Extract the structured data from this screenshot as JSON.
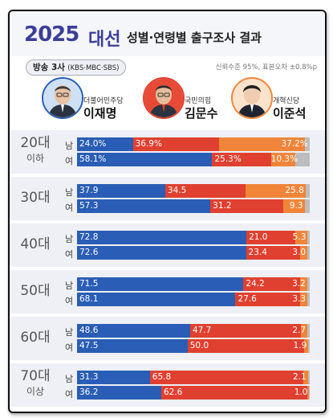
{
  "header": {
    "year": "2025",
    "election": "대선",
    "subtitle": "성별·연령별 출구조사 결과",
    "broadcast": "방송 3사",
    "broadcast_sub": "(KBS·MBC·SBS)",
    "note": "신뢰수준 95%, 표본오차 ±0.8%p"
  },
  "candidates": [
    {
      "party": "더불어민주당",
      "name": "이재명",
      "color": "#2a5db5",
      "avatar": "person-1-icon"
    },
    {
      "party": "국민의힘",
      "name": "김문수",
      "color": "#e0402f",
      "avatar": "person-2-icon"
    },
    {
      "party": "개혁신당",
      "name": "이준석",
      "color": "#f0853a",
      "avatar": "person-3-icon"
    }
  ],
  "colors": {
    "blue": "#2a5db5",
    "red": "#e0402f",
    "orange": "#f0853a",
    "other": "#bdbdbd",
    "band": "#eef0f5"
  },
  "chart_data": {
    "type": "bar",
    "stacked": true,
    "groups": [
      {
        "age": [
          "20대",
          "이하"
        ],
        "rows": [
          {
            "sex": "남",
            "values": [
              24.0,
              36.9,
              37.2
            ],
            "labels": [
              "24.0%",
              "36.9%",
              "37.2%"
            ]
          },
          {
            "sex": "여",
            "values": [
              58.1,
              25.3,
              10.3
            ],
            "labels": [
              "58.1%",
              "25.3%",
              "10.3%"
            ]
          }
        ]
      },
      {
        "age": [
          "30대"
        ],
        "rows": [
          {
            "sex": "남",
            "values": [
              37.9,
              34.5,
              25.8
            ],
            "labels": [
              "37.9",
              "34.5",
              "25.8"
            ]
          },
          {
            "sex": "여",
            "values": [
              57.3,
              31.2,
              9.3
            ],
            "labels": [
              "57.3",
              "31.2",
              "9.3"
            ]
          }
        ]
      },
      {
        "age": [
          "40대"
        ],
        "rows": [
          {
            "sex": "남",
            "values": [
              72.8,
              21.0,
              5.3
            ],
            "labels": [
              "72.8",
              "21.0",
              "5.3"
            ]
          },
          {
            "sex": "여",
            "values": [
              72.6,
              23.4,
              3.0
            ],
            "labels": [
              "72.6",
              "23.4",
              "3.0"
            ]
          }
        ]
      },
      {
        "age": [
          "50대"
        ],
        "rows": [
          {
            "sex": "남",
            "values": [
              71.5,
              24.2,
              3.2
            ],
            "labels": [
              "71.5",
              "24.2",
              "3.2"
            ]
          },
          {
            "sex": "여",
            "values": [
              68.1,
              27.6,
              3.3
            ],
            "labels": [
              "68.1",
              "27.6",
              "3.3"
            ]
          }
        ]
      },
      {
        "age": [
          "60대"
        ],
        "rows": [
          {
            "sex": "남",
            "values": [
              48.6,
              47.7,
              2.7
            ],
            "labels": [
              "48.6",
              "47.7",
              "2.7"
            ]
          },
          {
            "sex": "여",
            "values": [
              47.5,
              50.0,
              1.9
            ],
            "labels": [
              "47.5",
              "50.0",
              "1.9"
            ]
          }
        ]
      },
      {
        "age": [
          "70대",
          "이상"
        ],
        "rows": [
          {
            "sex": "남",
            "values": [
              31.3,
              65.8,
              2.1
            ],
            "labels": [
              "31.3",
              "65.8",
              "2.1"
            ]
          },
          {
            "sex": "여",
            "values": [
              36.2,
              62.6,
              1.0
            ],
            "labels": [
              "36.2",
              "62.6",
              "1.0"
            ]
          }
        ]
      }
    ]
  }
}
